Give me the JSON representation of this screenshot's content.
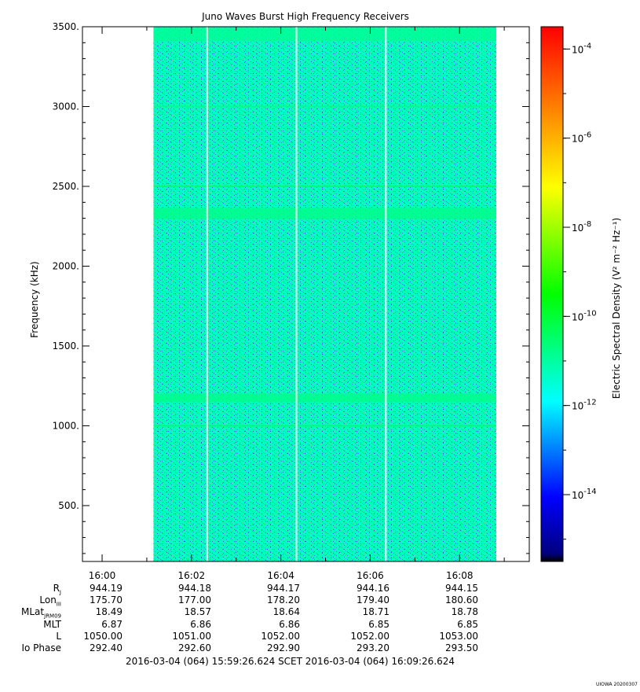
{
  "chart_data": {
    "type": "heatmap",
    "title": "Juno Waves Burst High Frequency Receivers",
    "ylabel": "Frequency (kHz)",
    "ylim": [
      150,
      3500
    ],
    "yticks": [
      {
        "value": 500,
        "label": "500."
      },
      {
        "value": 1000,
        "label": "1000."
      },
      {
        "value": 1500,
        "label": "1500."
      },
      {
        "value": 2000,
        "label": "2000."
      },
      {
        "value": 2500,
        "label": "2500."
      },
      {
        "value": 3000,
        "label": "3000."
      },
      {
        "value": 3500,
        "label": "3500."
      }
    ],
    "xlim_minutes": [
      -0.44,
      9.56
    ],
    "xticks": [
      {
        "value": 0,
        "label": "16:00"
      },
      {
        "value": 2,
        "label": "16:02"
      },
      {
        "value": 4,
        "label": "16:04"
      },
      {
        "value": 6,
        "label": "16:06"
      },
      {
        "value": 8,
        "label": "16:08"
      }
    ],
    "data_span_minutes": [
      1.15,
      8.82
    ],
    "data_gaps_minutes": [
      2.35,
      4.35,
      6.35
    ],
    "background_level_log10": -11.3,
    "enhanced_bands": [
      {
        "freq_khz": 3450,
        "width_khz": 80,
        "level_log10": -10.9
      },
      {
        "freq_khz": 3000,
        "width_khz": 10,
        "level_log10": -10.7
      },
      {
        "freq_khz": 2500,
        "width_khz": 10,
        "level_log10": -10.5
      },
      {
        "freq_khz": 2330,
        "width_khz": 70,
        "level_log10": -10.8
      },
      {
        "freq_khz": 1175,
        "width_khz": 55,
        "level_log10": -10.8
      },
      {
        "freq_khz": 1000,
        "width_khz": 10,
        "level_log10": -10.5
      }
    ],
    "colorbar": {
      "label": "Electric Spectral Density (V² m⁻² Hz⁻¹)",
      "range_log10": [
        -15.5,
        -3.5
      ],
      "ticks": [
        {
          "value": -14,
          "base": "10",
          "exp": "-14"
        },
        {
          "value": -12,
          "base": "10",
          "exp": "-12"
        },
        {
          "value": -10,
          "base": "10",
          "exp": "-10"
        },
        {
          "value": -8,
          "base": "10",
          "exp": "-8"
        },
        {
          "value": -6,
          "base": "10",
          "exp": "-6"
        },
        {
          "value": -4,
          "base": "10",
          "exp": "-4"
        }
      ]
    }
  },
  "ephemeris": {
    "labels": [
      "R",
      "Lon",
      "MLat",
      "MLT",
      "L",
      "Io Phase"
    ],
    "label_subscripts": [
      "J",
      "III",
      "JRM09",
      "",
      "",
      ""
    ],
    "columns": [
      [
        "944.19",
        "175.70",
        "18.49",
        "6.87",
        "1050.00",
        "292.40"
      ],
      [
        "944.18",
        "177.00",
        "18.57",
        "6.86",
        "1051.00",
        "292.60"
      ],
      [
        "944.17",
        "178.20",
        "18.64",
        "6.86",
        "1052.00",
        "292.90"
      ],
      [
        "944.16",
        "179.40",
        "18.71",
        "6.85",
        "1052.00",
        "293.20"
      ],
      [
        "944.15",
        "180.60",
        "18.78",
        "6.85",
        "1053.00",
        "293.50"
      ]
    ]
  },
  "footer": {
    "range_text": "2016-03-04 (064) 15:59:26.624    SCET    2016-03-04 (064) 16:09:26.624",
    "credit": "UIOWA 20200307"
  }
}
